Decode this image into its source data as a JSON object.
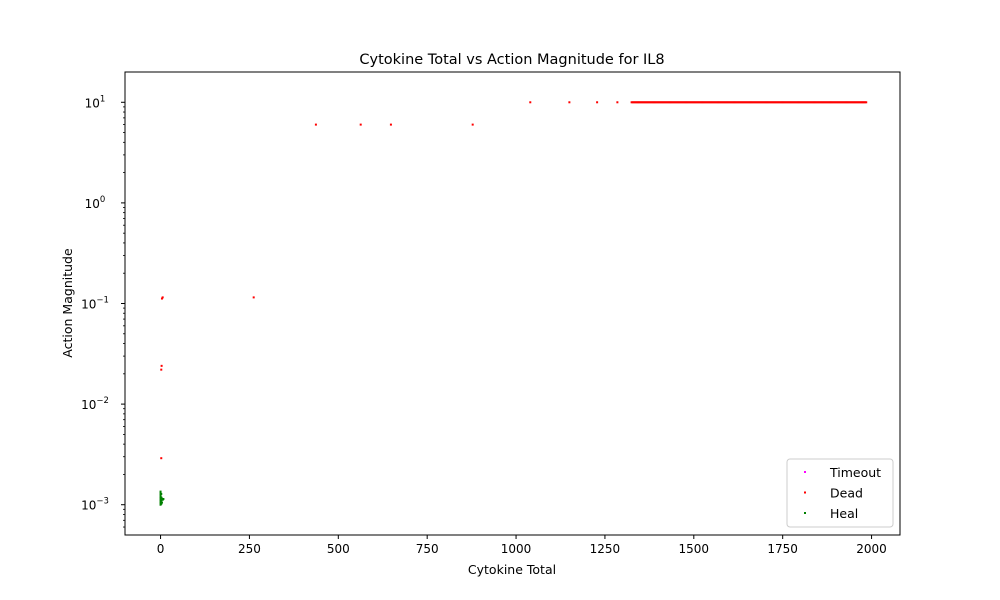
{
  "chart_data": {
    "type": "scatter",
    "title": "Cytokine Total vs Action Magnitude for IL8",
    "xlabel": "Cytokine Total",
    "ylabel": "Action Magnitude",
    "xlim": [
      -100,
      2080
    ],
    "ylim": [
      0.0005,
      20
    ],
    "yscale": "log",
    "xticks": [
      0,
      250,
      500,
      750,
      1000,
      1250,
      1500,
      1750,
      2000
    ],
    "yticks": [
      {
        "value": 0.001,
        "mantissa": "10",
        "exp": "−3"
      },
      {
        "value": 0.01,
        "mantissa": "10",
        "exp": "−2"
      },
      {
        "value": 0.1,
        "mantissa": "10",
        "exp": "−1"
      },
      {
        "value": 1,
        "mantissa": "10",
        "exp": "0"
      },
      {
        "value": 10,
        "mantissa": "10",
        "exp": "1"
      }
    ],
    "grid": false,
    "legend_position": "lower-right",
    "series": [
      {
        "name": "Timeout",
        "color": "#ff00ff",
        "points": []
      },
      {
        "name": "Dead",
        "color": "#ff0000",
        "points": [
          [
            2,
            0.0029
          ],
          [
            2,
            0.022
          ],
          [
            3,
            0.024
          ],
          [
            4,
            0.112
          ],
          [
            6,
            0.115
          ],
          [
            262,
            0.115
          ],
          [
            437,
            6
          ],
          [
            563,
            6
          ],
          [
            648,
            6
          ],
          [
            878,
            6
          ],
          [
            1040,
            10
          ],
          [
            1150,
            10
          ],
          [
            1228,
            10
          ],
          [
            1285,
            10
          ]
        ],
        "dense_run": {
          "x_start": 1325,
          "x_end": 1985,
          "y": 10
        }
      },
      {
        "name": "Heal",
        "color": "#008000",
        "points": [
          [
            0,
            0.001
          ],
          [
            0,
            0.00104
          ],
          [
            0,
            0.00108
          ],
          [
            0,
            0.00112
          ],
          [
            0,
            0.00116
          ],
          [
            0,
            0.0012
          ],
          [
            0,
            0.00125
          ],
          [
            0,
            0.0013
          ],
          [
            0,
            0.00135
          ],
          [
            2,
            0.00102
          ],
          [
            2,
            0.0011
          ],
          [
            2,
            0.00118
          ],
          [
            2,
            0.00128
          ],
          [
            4,
            0.00105
          ],
          [
            4,
            0.00115
          ],
          [
            6,
            0.00112
          ],
          [
            8,
            0.00114
          ]
        ]
      }
    ]
  }
}
